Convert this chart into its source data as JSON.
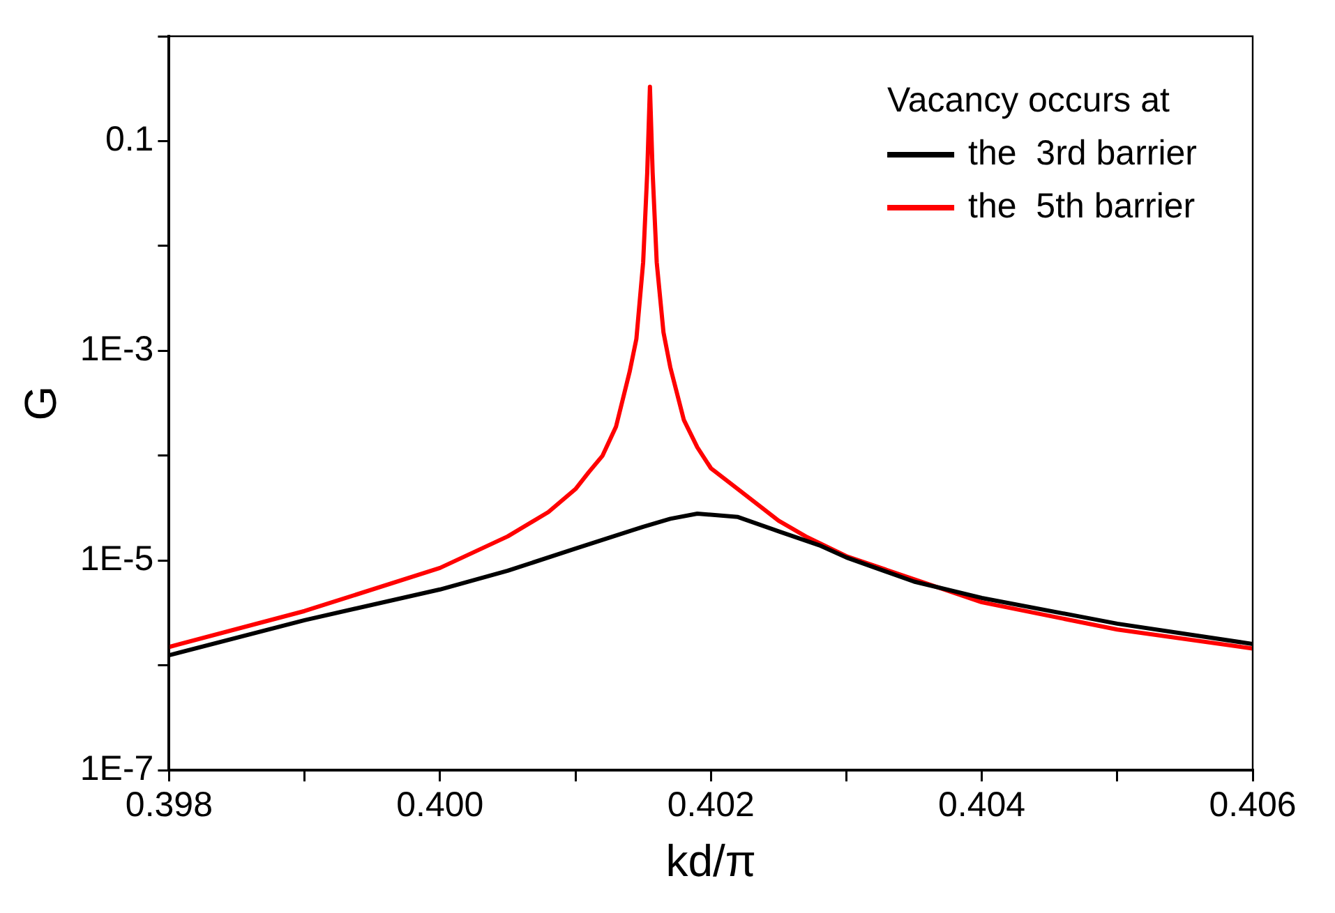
{
  "chart_data": {
    "type": "line",
    "xlabel": "kd/π",
    "ylabel": "G",
    "legend_title": "Vacancy occurs at",
    "legend": "top right",
    "log": "y",
    "grid": false,
    "marker": "none",
    "line_style": "solid",
    "xlim": [
      0.398,
      0.406
    ],
    "ylim": [
      1e-07,
      1
    ],
    "xticks": [
      {
        "value": 0.398,
        "label": "0.398"
      },
      {
        "value": 0.399,
        "label": null
      },
      {
        "value": 0.4,
        "label": "0.400"
      },
      {
        "value": 0.401,
        "label": null
      },
      {
        "value": 0.402,
        "label": "0.402"
      },
      {
        "value": 0.403,
        "label": null
      },
      {
        "value": 0.404,
        "label": "0.404"
      },
      {
        "value": 0.405,
        "label": null
      },
      {
        "value": 0.406,
        "label": "0.406"
      }
    ],
    "yticks": [
      {
        "value": 1e-07,
        "label": "1E-7"
      },
      {
        "value": 1e-06,
        "label": null
      },
      {
        "value": 1e-05,
        "label": "1E-5"
      },
      {
        "value": 0.0001,
        "label": null
      },
      {
        "value": 0.001,
        "label": "1E-3"
      },
      {
        "value": 0.01,
        "label": null
      },
      0.1,
      {
        "value": 1,
        "label": null
      }
    ],
    "series": [
      {
        "name": "the  3rd barrier",
        "color": "#000000",
        "x": [
          0.398,
          0.399,
          0.4,
          0.4005,
          0.401,
          0.4015,
          0.4017,
          0.4019,
          0.4022,
          0.4025,
          0.4028,
          0.403,
          0.4035,
          0.404,
          0.405,
          0.406
        ],
        "values": [
          1.25e-06,
          2.7e-06,
          5.3e-06,
          8e-06,
          1.3e-05,
          2.1e-05,
          2.5e-05,
          2.8e-05,
          2.6e-05,
          1.9e-05,
          1.4e-05,
          1.07e-05,
          6.3e-06,
          4.4e-06,
          2.5e-06,
          1.6e-06
        ]
      },
      {
        "name": "the  5th barrier",
        "color": "#ff0000",
        "x": [
          0.398,
          0.399,
          0.4,
          0.4005,
          0.4008,
          0.401,
          0.4011,
          0.4012,
          0.4013,
          0.4014,
          0.40145,
          0.4015,
          0.40153,
          0.40155,
          0.40157,
          0.4016,
          0.40165,
          0.4017,
          0.4018,
          0.4019,
          0.402,
          0.4022,
          0.4025,
          0.4027,
          0.403,
          0.404,
          0.405,
          0.406
        ],
        "values": [
          1.5e-06,
          3.3e-06,
          8.5e-06,
          1.7e-05,
          2.9e-05,
          4.8e-05,
          7e-05,
          0.0001,
          0.00019,
          0.00063,
          0.0013,
          0.007,
          0.05,
          0.33,
          0.05,
          0.007,
          0.0015,
          0.0007,
          0.00022,
          0.00012,
          7.6e-05,
          4.8e-05,
          2.4e-05,
          1.7e-05,
          1.1e-05,
          4e-06,
          2.2e-06,
          1.45e-06
        ]
      }
    ]
  }
}
